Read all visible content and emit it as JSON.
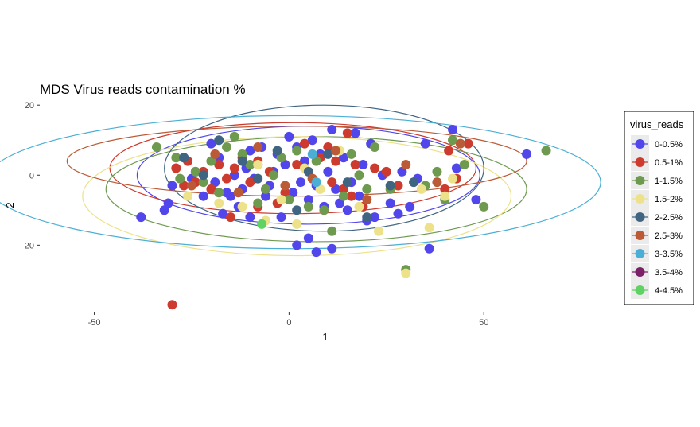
{
  "chart_data": {
    "type": "scatter",
    "title": "MDS Virus reads contamination %",
    "xlabel": "1",
    "ylabel": "2",
    "xlim": [
      -64,
      81
    ],
    "ylim": [
      -39,
      20.5
    ],
    "x_ticks": [
      -50,
      0,
      50
    ],
    "y_ticks": [
      -20,
      0,
      20
    ],
    "x_tick_labels": [
      "-50",
      "0",
      "50"
    ],
    "y_tick_labels": [
      "-20",
      "0",
      "20"
    ],
    "grid": false,
    "legend_title": "virus_reads",
    "legend_position": "right",
    "series": [
      {
        "name": "0-0.5%",
        "color": "#5046EB",
        "ellipse": {
          "cx": 5,
          "cy": 0,
          "rx": 44,
          "ry": 14,
          "angle": 0
        },
        "points": [
          [
            -38,
            -12
          ],
          [
            -32,
            -10
          ],
          [
            -31,
            -8
          ],
          [
            -30,
            -3
          ],
          [
            -27,
            5
          ],
          [
            -25,
            -1
          ],
          [
            -24,
            1
          ],
          [
            -22,
            -6
          ],
          [
            -20,
            9
          ],
          [
            -19,
            -2
          ],
          [
            -18,
            5
          ],
          [
            -17,
            -11
          ],
          [
            -16,
            -5
          ],
          [
            -14,
            0
          ],
          [
            -13,
            -9
          ],
          [
            -12,
            -4
          ],
          [
            -11,
            2
          ],
          [
            -10,
            7
          ],
          [
            -9,
            -1
          ],
          [
            -8,
            3
          ],
          [
            -7,
            8
          ],
          [
            -6,
            -6
          ],
          [
            -5,
            -3
          ],
          [
            -4,
            1
          ],
          [
            -3,
            6
          ],
          [
            -2,
            -12
          ],
          [
            -1,
            3
          ],
          [
            0,
            11
          ],
          [
            1,
            -5
          ],
          [
            2,
            8
          ],
          [
            3,
            -2
          ],
          [
            4,
            4
          ],
          [
            5,
            -7
          ],
          [
            6,
            10
          ],
          [
            7,
            -3
          ],
          [
            8,
            6
          ],
          [
            9,
            -9
          ],
          [
            10,
            1
          ],
          [
            11,
            13
          ],
          [
            12,
            -4
          ],
          [
            13,
            -8
          ],
          [
            14,
            5
          ],
          [
            15,
            -10
          ],
          [
            16,
            -2
          ],
          [
            17,
            12
          ],
          [
            18,
            -6
          ],
          [
            19,
            3
          ],
          [
            20,
            -13
          ],
          [
            21,
            9
          ],
          [
            22,
            -12
          ],
          [
            24,
            0
          ],
          [
            26,
            -8
          ],
          [
            28,
            -11
          ],
          [
            29,
            1
          ],
          [
            31,
            -9
          ],
          [
            33,
            -1
          ],
          [
            35,
            9
          ],
          [
            36,
            -21
          ],
          [
            42,
            13
          ],
          [
            43,
            2
          ],
          [
            48,
            -7
          ],
          [
            2,
            -20
          ],
          [
            5,
            -18
          ],
          [
            11,
            -21
          ],
          [
            7,
            -22
          ],
          [
            61,
            6
          ],
          [
            -10,
            -12
          ],
          [
            -15,
            -6
          ]
        ]
      },
      {
        "name": "0.5-1%",
        "color": "#CD3A2E",
        "ellipse": {
          "cx": 1,
          "cy": 2,
          "rx": 47,
          "ry": 13,
          "angle": 0
        },
        "points": [
          [
            -30,
            -37
          ],
          [
            -29,
            2
          ],
          [
            -27,
            -3
          ],
          [
            -26,
            4
          ],
          [
            -24,
            -2
          ],
          [
            -22,
            1
          ],
          [
            -20,
            -4
          ],
          [
            -18,
            3
          ],
          [
            -16,
            -1
          ],
          [
            -14,
            2
          ],
          [
            -12,
            5
          ],
          [
            -10,
            -2
          ],
          [
            -8,
            4
          ],
          [
            -6,
            -4
          ],
          [
            -5,
            1
          ],
          [
            -3,
            -8
          ],
          [
            -1,
            -5
          ],
          [
            2,
            3
          ],
          [
            4,
            9
          ],
          [
            6,
            -1
          ],
          [
            8,
            5
          ],
          [
            10,
            8
          ],
          [
            11,
            -2
          ],
          [
            12,
            4
          ],
          [
            14,
            -4
          ],
          [
            15,
            12
          ],
          [
            16,
            -6
          ],
          [
            17,
            3
          ],
          [
            19,
            -9
          ],
          [
            22,
            2
          ],
          [
            25,
            1
          ],
          [
            28,
            -3
          ],
          [
            40,
            -4
          ],
          [
            41,
            7
          ],
          [
            43,
            -1
          ],
          [
            46,
            9
          ],
          [
            -15,
            -12
          ],
          [
            -8,
            -9
          ]
        ]
      },
      {
        "name": "1-1.5%",
        "color": "#6D9A4E",
        "ellipse": {
          "cx": 7,
          "cy": -4,
          "rx": 54,
          "ry": 15,
          "angle": 0
        },
        "points": [
          [
            -34,
            8
          ],
          [
            -29,
            5
          ],
          [
            -28,
            -1
          ],
          [
            -24,
            1
          ],
          [
            -22,
            -2
          ],
          [
            -20,
            4
          ],
          [
            -18,
            -5
          ],
          [
            -16,
            8
          ],
          [
            -14,
            11
          ],
          [
            -12,
            6
          ],
          [
            -10,
            3
          ],
          [
            -8,
            -8
          ],
          [
            -6,
            -4
          ],
          [
            -4,
            0
          ],
          [
            -2,
            5
          ],
          [
            0,
            -7
          ],
          [
            2,
            7
          ],
          [
            5,
            -9
          ],
          [
            7,
            4
          ],
          [
            9,
            -10
          ],
          [
            11,
            -16
          ],
          [
            14,
            -6
          ],
          [
            16,
            6
          ],
          [
            18,
            0
          ],
          [
            20,
            -4
          ],
          [
            22,
            8
          ],
          [
            26,
            -4
          ],
          [
            30,
            -27
          ],
          [
            35,
            -3
          ],
          [
            38,
            1
          ],
          [
            40,
            -7
          ],
          [
            42,
            10
          ],
          [
            45,
            3
          ],
          [
            50,
            -9
          ],
          [
            66,
            7
          ]
        ]
      },
      {
        "name": "1.5-2%",
        "color": "#EDE28A",
        "ellipse": {
          "cx": 2,
          "cy": -6,
          "rx": 55,
          "ry": 17,
          "angle": 0
        },
        "points": [
          [
            -26,
            -6
          ],
          [
            -18,
            -8
          ],
          [
            -12,
            -9
          ],
          [
            -8,
            3
          ],
          [
            -6,
            -13
          ],
          [
            -2,
            -7
          ],
          [
            2,
            -14
          ],
          [
            4,
            2
          ],
          [
            8,
            -4
          ],
          [
            13,
            7
          ],
          [
            18,
            -9
          ],
          [
            23,
            -16
          ],
          [
            30,
            -28
          ],
          [
            34,
            -4
          ],
          [
            36,
            -15
          ],
          [
            40,
            -6
          ],
          [
            42,
            -1
          ]
        ]
      },
      {
        "name": "2-2.5%",
        "color": "#3F6583",
        "ellipse": {
          "cx": 9,
          "cy": 2,
          "rx": 41,
          "ry": 18,
          "angle": 0
        },
        "points": [
          [
            -27,
            5
          ],
          [
            -22,
            0
          ],
          [
            -18,
            10
          ],
          [
            -12,
            4
          ],
          [
            -8,
            -1
          ],
          [
            -3,
            7
          ],
          [
            2,
            -10
          ],
          [
            5,
            1
          ],
          [
            10,
            6
          ],
          [
            15,
            -2
          ],
          [
            20,
            -12
          ],
          [
            26,
            -3
          ],
          [
            32,
            -2
          ]
        ]
      },
      {
        "name": "2.5-3%",
        "color": "#BB5A36",
        "ellipse": {
          "cx": 2,
          "cy": 4,
          "rx": 59,
          "ry": 10,
          "angle": 0
        },
        "points": [
          [
            -25,
            -3
          ],
          [
            -19,
            6
          ],
          [
            -13,
            -5
          ],
          [
            -8,
            8
          ],
          [
            -1,
            -3
          ],
          [
            6,
            -1
          ],
          [
            12,
            7
          ],
          [
            20,
            -7
          ],
          [
            30,
            3
          ],
          [
            38,
            -2
          ],
          [
            44,
            9
          ]
        ]
      },
      {
        "name": "3-3.5%",
        "color": "#4BAED4",
        "ellipse": {
          "cx": 1,
          "cy": -2,
          "rx": 79,
          "ry": 19,
          "angle": 0
        },
        "points": [
          [
            7,
            -2
          ],
          [
            6,
            6
          ]
        ]
      },
      {
        "name": "3.5-4%",
        "color": "#7B2168",
        "ellipse": null,
        "points": []
      },
      {
        "name": "4-4.5%",
        "color": "#5ED263",
        "ellipse": null,
        "points": [
          [
            -7,
            -14
          ]
        ]
      }
    ]
  }
}
